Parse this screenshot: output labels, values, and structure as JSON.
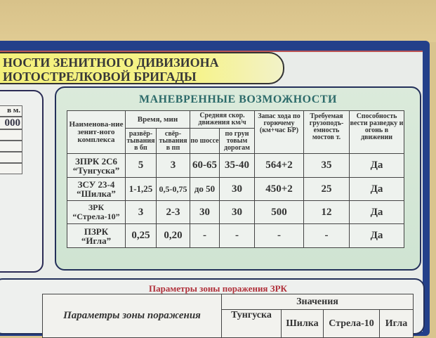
{
  "poster": {
    "banner": {
      "line1": "НОСТИ ЗЕНИТНОГО ДИВИЗИОНА",
      "line2": "ИОТОСТРЕЛКОВОЙ БРИГАДЫ"
    },
    "left_panel": {
      "header": "в м.",
      "value": "000"
    },
    "maneuver": {
      "title": "МАНЕВРЕННЫЕ ВОЗМОЖНОСТИ",
      "headers": {
        "name": "Наименова-ние зенит-ного комплекса",
        "time": "Время, мин",
        "deploy": "развёр-тывания в бп",
        "collapse": "свёр-тывания в пп",
        "speed": "Средняя скор. движения км/ч",
        "highway": "по шоссе",
        "dirt": "по грун товым дорогам",
        "range": "Запас хода по горючему (км+час БР)",
        "bridge": "Требуемая грузоподъ-емность мостов т.",
        "ability": "Способность вести разведку и огонь в движении"
      },
      "rows": [
        {
          "name1": "ЗПРК 2С6",
          "name2": "“Тунгуска”",
          "deploy": "5",
          "collapse": "3",
          "highway": "60-65",
          "dirt": "35-40",
          "range": "564+2",
          "bridge": "35",
          "ability": "Да"
        },
        {
          "name1": "ЗСУ 23-4",
          "name2": "“Шилка”",
          "deploy": "1-1,25",
          "collapse": "0,5-0,75",
          "highway": "до 50",
          "dirt": "30",
          "range": "450+2",
          "bridge": "25",
          "ability": "Да"
        },
        {
          "name1": "ЗРК",
          "name2": "“Стрела-10”",
          "deploy": "3",
          "collapse": "2-3",
          "highway": "30",
          "dirt": "30",
          "range": "500",
          "bridge": "12",
          "ability": "Да"
        },
        {
          "name1": "ПЗРК",
          "name2": "“Игла”",
          "deploy": "0,25",
          "collapse": "0,20",
          "highway": "-",
          "dirt": "-",
          "range": "-",
          "bridge": "-",
          "ability": "Да"
        }
      ]
    },
    "zone": {
      "title": "Параметры зоны поражения ЗРК",
      "param_header": "Параметры зоны поражения",
      "values_header": "Значения",
      "systems": [
        "Тунгуска",
        "Шилка",
        "Стрела-10",
        "Игла"
      ]
    }
  }
}
